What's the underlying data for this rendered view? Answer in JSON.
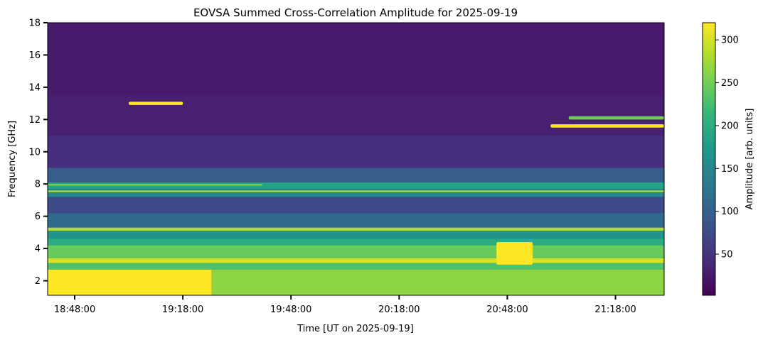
{
  "chart_data": {
    "type": "heatmap",
    "title": "EOVSA Summed Cross-Correlation Amplitude for 2025-09-19",
    "xlabel": "Time [UT on 2025-09-19]",
    "ylabel": "Frequency [GHz]",
    "colorbar_label": "Amplitude [arb. units]",
    "colormap": "viridis",
    "colormap_stops": [
      "#440154",
      "#482878",
      "#3e4a89",
      "#31688e",
      "#26828e",
      "#1f9e89",
      "#35b779",
      "#6ece58",
      "#b5de2b",
      "#fde725"
    ],
    "xlim": [
      "18:40:30",
      "21:31:30"
    ],
    "ylim": [
      1.1,
      18.0
    ],
    "clim": [
      2,
      320
    ],
    "x_ticks": [
      "18:48:00",
      "19:18:00",
      "19:48:00",
      "20:18:00",
      "20:48:00",
      "21:18:00"
    ],
    "y_ticks": [
      2,
      4,
      6,
      8,
      10,
      12,
      14,
      16,
      18
    ],
    "colorbar_ticks": [
      50,
      100,
      150,
      200,
      250,
      300
    ],
    "background_level": 25,
    "frequency_bands": [
      {
        "f_low": 1.1,
        "f_high": 2.7,
        "amplitude": 320,
        "end_time": "19:26:00",
        "amplitude_after": 265
      },
      {
        "f_low": 2.7,
        "f_high": 3.1,
        "amplitude": 230
      },
      {
        "f_low": 3.1,
        "f_high": 3.4,
        "amplitude": 300
      },
      {
        "f_low": 3.4,
        "f_high": 4.2,
        "amplitude": 245
      },
      {
        "f_low": 4.2,
        "f_high": 4.6,
        "amplitude": 200
      },
      {
        "f_low": 4.6,
        "f_high": 5.1,
        "amplitude": 165
      },
      {
        "f_low": 5.1,
        "f_high": 5.3,
        "amplitude": 280
      },
      {
        "f_low": 5.3,
        "f_high": 6.2,
        "amplitude": 110
      },
      {
        "f_low": 6.2,
        "f_high": 7.2,
        "amplitude": 75
      },
      {
        "f_low": 7.2,
        "f_high": 7.7,
        "amplitude": 150
      },
      {
        "f_low": 7.7,
        "f_high": 8.1,
        "amplitude": 185
      },
      {
        "f_low": 8.1,
        "f_high": 9.0,
        "amplitude": 95
      },
      {
        "f_low": 9.0,
        "f_high": 11.0,
        "amplitude": 45
      },
      {
        "f_low": 11.0,
        "f_high": 13.5,
        "amplitude": 30
      }
    ],
    "bright_features": [
      {
        "t_start": "19:03:00",
        "t_end": "19:18:00",
        "f_low": 12.9,
        "f_high": 13.1,
        "amplitude": 320
      },
      {
        "t_start": "21:00:00",
        "t_end": "21:31:30",
        "f_low": 11.5,
        "f_high": 11.7,
        "amplitude": 320
      },
      {
        "t_start": "21:05:00",
        "t_end": "21:31:30",
        "f_low": 12.0,
        "f_high": 12.2,
        "amplitude": 250
      },
      {
        "t_start": "18:40:30",
        "t_end": "21:31:30",
        "f_low": 7.5,
        "f_high": 7.6,
        "amplitude": 280
      },
      {
        "t_start": "18:40:30",
        "t_end": "19:40:00",
        "f_low": 7.9,
        "f_high": 8.0,
        "amplitude": 260
      },
      {
        "t_start": "20:45:00",
        "t_end": "20:55:00",
        "f_low": 3.0,
        "f_high": 4.4,
        "amplitude": 320
      }
    ]
  }
}
